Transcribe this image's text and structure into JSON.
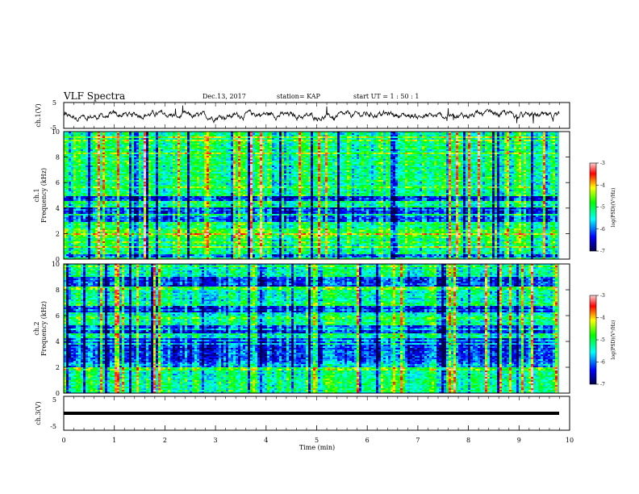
{
  "header": {
    "title": "VLF Spectra",
    "date": "Dec.13, 2017",
    "station": "station= KAP",
    "start": "start UT =  1 : 50 : 1"
  },
  "chart_data": [
    {
      "type": "line",
      "ylabel": "ch.1(V)",
      "ylim": [
        -5,
        5
      ],
      "yticks": [
        "5",
        "-5"
      ],
      "xlim": [
        0,
        10
      ],
      "series_style": "noisy waveform, approx. amplitude ±1.5 V around 0"
    },
    {
      "type": "heatmap",
      "ylabel_top": "ch.1",
      "ylabel": "Frequency (kHz)",
      "ylim": [
        0,
        10
      ],
      "yticks": [
        "0",
        "2",
        "4",
        "6",
        "8",
        "10"
      ],
      "xlim": [
        0,
        10
      ],
      "colorbar": {
        "label": "log(PSD)(V²/Hz)",
        "ticks": [
          "-3",
          "-4",
          "-5",
          "-6",
          "-7"
        ],
        "range": [
          -7,
          -3
        ]
      }
    },
    {
      "type": "heatmap",
      "ylabel_top": "ch.2",
      "ylabel": "Frequency (kHz)",
      "ylim": [
        0,
        10
      ],
      "yticks": [
        "0",
        "2",
        "4",
        "6",
        "8",
        "10"
      ],
      "xlim": [
        0,
        10
      ],
      "colorbar": {
        "label": "log(PSD)(V²/Hz)",
        "ticks": [
          "-3",
          "-4",
          "-5",
          "-6",
          "-7"
        ],
        "range": [
          -7,
          -3
        ]
      }
    },
    {
      "type": "line",
      "ylabel": "ch.3(V)",
      "ylim": [
        -5,
        5
      ],
      "yticks": [
        "5",
        "-5"
      ],
      "xlim": [
        0,
        10
      ],
      "xlabel": "Time (min)",
      "xticks": [
        "0",
        "1",
        "2",
        "3",
        "4",
        "5",
        "6",
        "7",
        "8",
        "9",
        "10"
      ],
      "series_style": "flat thick line near -1 V"
    }
  ],
  "colors": {
    "frame": "#000000",
    "colormap": [
      "#00004a",
      "#0000ff",
      "#00ffff",
      "#00ff00",
      "#ffff00",
      "#ff0000",
      "#ffd0d0"
    ]
  }
}
